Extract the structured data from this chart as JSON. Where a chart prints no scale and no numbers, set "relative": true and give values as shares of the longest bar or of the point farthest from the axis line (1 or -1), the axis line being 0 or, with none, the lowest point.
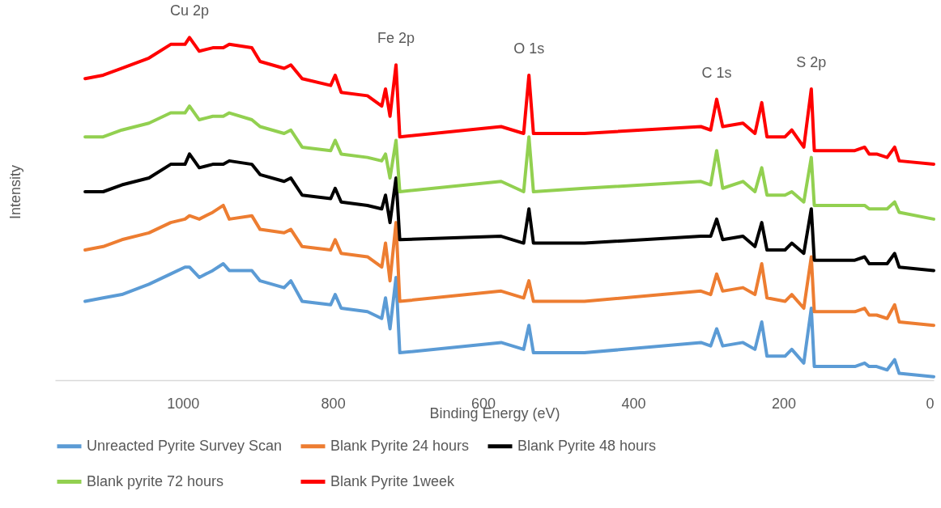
{
  "chart_data": {
    "type": "line",
    "relative": true,
    "xlabel": "Binding Energy (eV)",
    "ylabel": "Intensity",
    "x": [
      1130,
      1106,
      1081,
      1045,
      1016,
      997,
      991,
      978,
      960,
      946,
      938,
      908,
      897,
      865,
      856,
      841,
      803,
      797,
      789,
      754,
      735,
      730,
      724,
      716,
      711,
      576,
      546,
      539,
      533,
      465,
      310,
      297,
      289,
      281,
      254,
      238,
      229,
      222,
      198,
      189,
      173,
      163,
      159,
      105,
      92,
      86,
      76,
      62,
      52,
      46,
      0
    ],
    "xlim": [
      1170,
      0
    ],
    "xticks": [
      1000,
      800,
      600,
      400,
      200,
      0
    ],
    "series": [
      {
        "name": "Unreacted Pyrite Survey Scan",
        "color": "#5b9bd5",
        "values": [
          0.23,
          0.24,
          0.25,
          0.28,
          0.31,
          0.33,
          0.33,
          0.3,
          0.32,
          0.34,
          0.32,
          0.32,
          0.29,
          0.27,
          0.29,
          0.23,
          0.22,
          0.25,
          0.21,
          0.2,
          0.18,
          0.24,
          0.15,
          0.3,
          0.08,
          0.11,
          0.09,
          0.16,
          0.08,
          0.08,
          0.11,
          0.1,
          0.15,
          0.1,
          0.11,
          0.09,
          0.17,
          0.07,
          0.07,
          0.09,
          0.05,
          0.21,
          0.04,
          0.04,
          0.05,
          0.04,
          0.04,
          0.03,
          0.06,
          0.02,
          0.01
        ]
      },
      {
        "name": "Blank Pyrite 24 hours",
        "color": "#ed7d31",
        "values": [
          0.38,
          0.39,
          0.41,
          0.43,
          0.46,
          0.47,
          0.48,
          0.47,
          0.49,
          0.51,
          0.47,
          0.48,
          0.44,
          0.43,
          0.44,
          0.39,
          0.38,
          0.41,
          0.37,
          0.36,
          0.33,
          0.4,
          0.29,
          0.46,
          0.23,
          0.26,
          0.24,
          0.29,
          0.23,
          0.23,
          0.26,
          0.25,
          0.31,
          0.26,
          0.27,
          0.25,
          0.34,
          0.24,
          0.23,
          0.25,
          0.21,
          0.36,
          0.2,
          0.2,
          0.21,
          0.19,
          0.19,
          0.18,
          0.22,
          0.17,
          0.16
        ]
      },
      {
        "name": "Blank Pyrite 48 hours",
        "color": "#000000",
        "values": [
          0.55,
          0.55,
          0.57,
          0.59,
          0.63,
          0.63,
          0.66,
          0.62,
          0.63,
          0.63,
          0.64,
          0.63,
          0.6,
          0.58,
          0.59,
          0.54,
          0.53,
          0.56,
          0.52,
          0.51,
          0.5,
          0.54,
          0.46,
          0.59,
          0.41,
          0.42,
          0.4,
          0.5,
          0.4,
          0.4,
          0.42,
          0.42,
          0.47,
          0.41,
          0.42,
          0.39,
          0.46,
          0.38,
          0.38,
          0.4,
          0.37,
          0.5,
          0.35,
          0.35,
          0.36,
          0.34,
          0.34,
          0.34,
          0.37,
          0.33,
          0.32
        ]
      },
      {
        "name": "Blank pyrite 72 hours",
        "color": "#92d050",
        "values": [
          0.71,
          0.71,
          0.73,
          0.75,
          0.78,
          0.78,
          0.8,
          0.76,
          0.77,
          0.77,
          0.78,
          0.76,
          0.74,
          0.72,
          0.73,
          0.68,
          0.67,
          0.7,
          0.66,
          0.65,
          0.64,
          0.66,
          0.59,
          0.7,
          0.55,
          0.58,
          0.55,
          0.71,
          0.55,
          0.56,
          0.58,
          0.57,
          0.67,
          0.56,
          0.58,
          0.55,
          0.62,
          0.54,
          0.54,
          0.55,
          0.52,
          0.65,
          0.51,
          0.51,
          0.51,
          0.5,
          0.5,
          0.5,
          0.52,
          0.49,
          0.47
        ]
      },
      {
        "name": "Blank Pyrite 1week",
        "color": "#ff0000",
        "values": [
          0.88,
          0.89,
          0.91,
          0.94,
          0.98,
          0.98,
          1.0,
          0.96,
          0.97,
          0.97,
          0.98,
          0.97,
          0.93,
          0.91,
          0.92,
          0.88,
          0.86,
          0.89,
          0.84,
          0.83,
          0.8,
          0.85,
          0.77,
          0.92,
          0.71,
          0.74,
          0.72,
          0.89,
          0.72,
          0.72,
          0.74,
          0.73,
          0.82,
          0.74,
          0.75,
          0.72,
          0.81,
          0.71,
          0.71,
          0.73,
          0.68,
          0.85,
          0.67,
          0.67,
          0.68,
          0.66,
          0.66,
          0.65,
          0.68,
          0.64,
          0.63
        ]
      }
    ],
    "annotations": [
      {
        "text": "Cu 2p",
        "x": 991,
        "y": 1.0
      },
      {
        "text": "Fe 2p",
        "x": 716,
        "y": 0.92
      },
      {
        "text": "O 1s",
        "x": 539,
        "y": 0.89
      },
      {
        "text": "C 1s",
        "x": 289,
        "y": 0.82
      },
      {
        "text": "S 2p",
        "x": 163,
        "y": 0.85
      }
    ],
    "legend": "bottom"
  }
}
